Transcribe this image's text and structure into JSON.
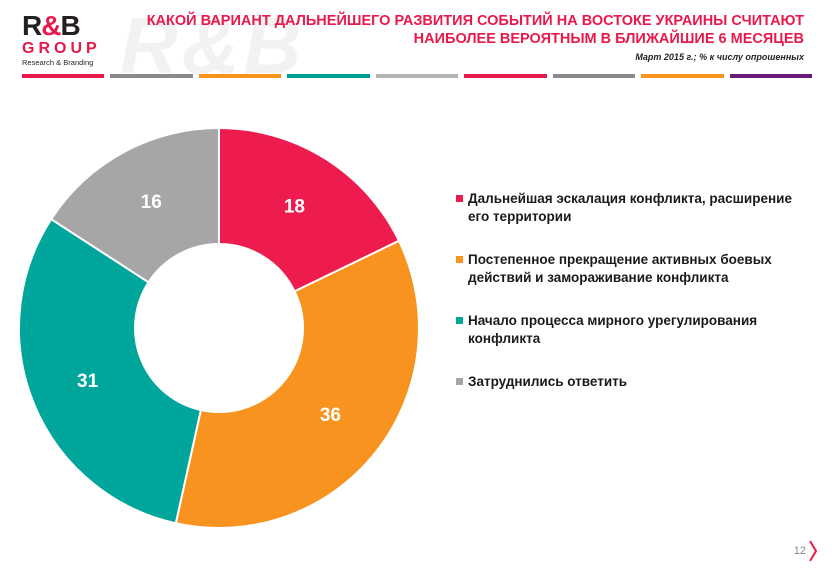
{
  "logo": {
    "mark_left": "R",
    "mark_amp": "&",
    "mark_right": "B",
    "group": "GROUP",
    "sub": "Research & Branding"
  },
  "watermark": "R&B",
  "title": "КАКОЙ ВАРИАНТ ДАЛЬНЕЙШЕГО РАЗВИТИЯ СОБЫТИЙ НА ВОСТОКЕ УКРАИНЫ СЧИТАЮТ НАИБОЛЕЕ ВЕРОЯТНЫМ В БЛИЖАЙШИЕ 6 МЕСЯЦЕВ",
  "subtitle": "Март  2015 г.; % к числу опрошенных",
  "bar_colors": [
    "#e8194b",
    "#8a8a8a",
    "#f7941d",
    "#009f93",
    "#b5b5b5",
    "#e8194b",
    "#8a8a8a",
    "#f7941d",
    "#6a1b78"
  ],
  "page_number": "12",
  "chart_data": {
    "type": "pie",
    "variant": "donut",
    "title": "КАКОЙ ВАРИАНТ ДАЛЬНЕЙШЕГО РАЗВИТИЯ СОБЫТИЙ НА ВОСТОКЕ УКРАИНЫ СЧИТАЮТ НАИБОЛЕЕ ВЕРОЯТНЫМ В БЛИЖАЙШИЕ 6 МЕСЯЦЕВ",
    "subtitle": "Март  2015 г.; % к числу опрошенных",
    "legend_position": "right",
    "slices": [
      {
        "label": "Дальнейшая эскалация конфликта, расширение его территории",
        "value": 18,
        "color": "#ee1c4e"
      },
      {
        "label": "Постепенное прекращение активных боевых действий и замораживание конфликта",
        "value": 36,
        "color": "#f7931e"
      },
      {
        "label": "Начало процесса мирного урегулирования конфликта",
        "value": 31,
        "color": "#00a59b"
      },
      {
        "label": "Затруднились ответить",
        "value": 16,
        "color": "#a6a6a6"
      }
    ]
  }
}
